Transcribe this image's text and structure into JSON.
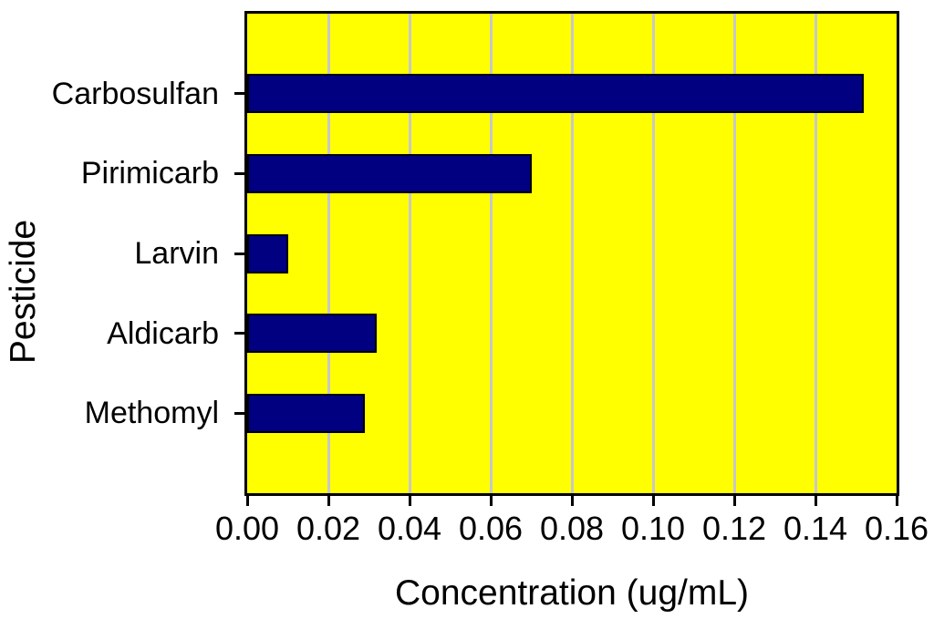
{
  "chart_data": {
    "type": "bar",
    "orientation": "horizontal",
    "title": "",
    "xlabel": "Concentration (ug/mL)",
    "ylabel": "Pesticide",
    "categories": [
      "Carbosulfan",
      "Pirimicarb",
      "Larvin",
      "Aldicarb",
      "Methomyl"
    ],
    "values": [
      0.152,
      0.07,
      0.01,
      0.032,
      0.029
    ],
    "xlim": [
      0,
      0.16
    ],
    "xticks": [
      0,
      0.02,
      0.04,
      0.06,
      0.08,
      0.1,
      0.12,
      0.14,
      0.16
    ],
    "xtick_labels": [
      "0.00",
      "0.02",
      "0.04",
      "0.06",
      "0.08",
      "0.10",
      "0.12",
      "0.14",
      "0.16"
    ],
    "grid": "vertical-gridlines-on",
    "legend": "none",
    "colors": {
      "bar_fill": "#000080",
      "bar_border": "#000000",
      "plot_background": "#FFFF00",
      "gridline": "#C8C8C8",
      "frame": "#000000",
      "text": "#000000",
      "page_background": "#FFFFFF"
    }
  }
}
